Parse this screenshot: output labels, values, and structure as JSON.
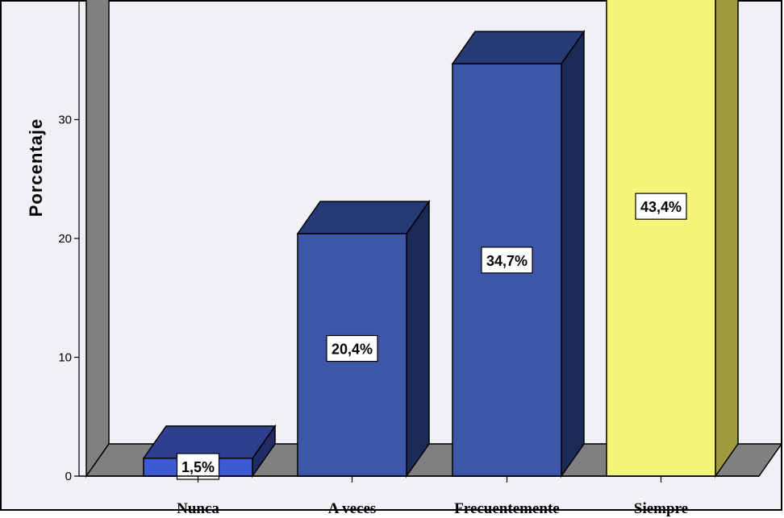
{
  "chart_data": {
    "type": "bar",
    "categories": [
      "Nunca",
      "A veces",
      "Frecuentemente",
      "Siempre"
    ],
    "values": [
      1.5,
      20.4,
      34.7,
      43.4
    ],
    "data_labels": [
      "1,5%",
      "20,4%",
      "34,7%",
      "43,4%"
    ],
    "title": "",
    "xlabel": "",
    "ylabel": "Porcentaje",
    "ylim": [
      0,
      40
    ],
    "yticks": [
      0,
      10,
      20,
      30
    ],
    "grid": false,
    "legend": "none",
    "three_d": true,
    "colors": {
      "bars": [
        "#3d5ad2",
        "#3c56a8",
        "#3c56a8",
        "#f5f57a"
      ],
      "bar_tops": [
        "#2e3f8e",
        "#263a75",
        "#263a75",
        "#f5f57a"
      ],
      "bar_sides": [
        "#1f2c66",
        "#1c2a58",
        "#1c2a58",
        "#a09a3e"
      ],
      "wall": "#808080",
      "floor": "#808080",
      "plot_background": "#eff0f4"
    }
  }
}
